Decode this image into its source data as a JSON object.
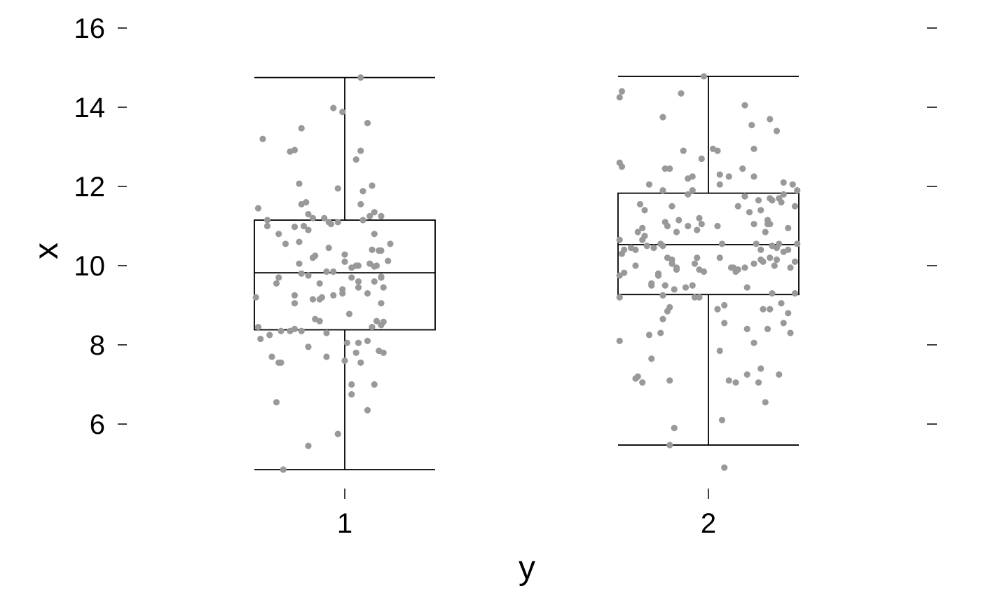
{
  "chart_data": {
    "type": "boxplot",
    "xlabel": "y",
    "ylabel": "x",
    "categories": [
      "1",
      "2"
    ],
    "ylim": [
      4.7,
      16.2
    ],
    "yticks": [
      6,
      8,
      10,
      12,
      14,
      16
    ],
    "grid": false,
    "right_ticks": true,
    "colors": {
      "points": "#999999",
      "box": "#000000"
    },
    "boxes": [
      {
        "category": "1",
        "whisker_low": 4.85,
        "q1": 8.38,
        "median": 9.82,
        "q3": 11.15,
        "whisker_high": 14.75
      },
      {
        "category": "2",
        "whisker_low": 5.47,
        "q1": 9.27,
        "median": 10.53,
        "q3": 11.83,
        "whisker_high": 14.78
      }
    ],
    "points": [
      [
        [
          -0.36,
          13.2
        ],
        [
          -0.38,
          11.45
        ],
        [
          -0.34,
          11.15
        ],
        [
          -0.34,
          11.0
        ],
        [
          -0.29,
          10.8
        ],
        [
          -0.39,
          9.2
        ],
        [
          -0.3,
          9.55
        ],
        [
          -0.29,
          9.7
        ],
        [
          -0.38,
          8.45
        ],
        [
          -0.37,
          8.15
        ],
        [
          -0.33,
          8.25
        ],
        [
          -0.32,
          7.7
        ],
        [
          -0.29,
          7.55
        ],
        [
          -0.28,
          7.55
        ],
        [
          -0.3,
          6.55
        ],
        [
          -0.27,
          4.85
        ],
        [
          -0.24,
          12.88
        ],
        [
          -0.22,
          12.92
        ],
        [
          -0.19,
          13.47
        ],
        [
          -0.2,
          12.07
        ],
        [
          -0.19,
          11.55
        ],
        [
          -0.17,
          11.6
        ],
        [
          -0.16,
          11.3
        ],
        [
          -0.14,
          11.2
        ],
        [
          -0.22,
          10.98
        ],
        [
          -0.18,
          11.0
        ],
        [
          -0.16,
          10.9
        ],
        [
          -0.2,
          10.6
        ],
        [
          -0.13,
          10.25
        ],
        [
          -0.14,
          10.2
        ],
        [
          -0.2,
          10.05
        ],
        [
          -0.19,
          9.8
        ],
        [
          -0.16,
          9.75
        ],
        [
          -0.22,
          9.25
        ],
        [
          -0.22,
          9.05
        ],
        [
          -0.11,
          9.55
        ],
        [
          -0.14,
          9.15
        ],
        [
          -0.1,
          9.2
        ],
        [
          -0.13,
          8.65
        ],
        [
          -0.22,
          8.4
        ],
        [
          -0.24,
          8.35
        ],
        [
          -0.19,
          8.35
        ],
        [
          -0.11,
          8.6
        ],
        [
          -0.16,
          7.95
        ],
        [
          -0.08,
          7.7
        ],
        [
          -0.08,
          8.3
        ],
        [
          -0.16,
          5.45
        ],
        [
          -0.05,
          13.98
        ],
        [
          -0.01,
          13.88
        ],
        [
          -0.03,
          11.95
        ],
        [
          -0.09,
          11.2
        ],
        [
          -0.07,
          11.1
        ],
        [
          -0.03,
          11.1
        ],
        [
          -0.07,
          10.45
        ],
        [
          -0.08,
          9.85
        ],
        [
          0.0,
          10.28
        ],
        [
          0.03,
          9.95
        ],
        [
          0.05,
          10.0
        ],
        [
          -0.01,
          9.4
        ],
        [
          -0.01,
          9.3
        ],
        [
          0.02,
          8.78
        ],
        [
          0.01,
          8.05
        ],
        [
          0.0,
          7.6
        ],
        [
          -0.03,
          5.75
        ],
        [
          0.03,
          7.0
        ],
        [
          0.03,
          6.75
        ],
        [
          0.07,
          14.75
        ],
        [
          0.07,
          12.9
        ],
        [
          0.1,
          13.6
        ],
        [
          0.07,
          11.55
        ],
        [
          0.08,
          11.15
        ],
        [
          0.05,
          12.68
        ],
        [
          0.08,
          11.88
        ],
        [
          0.06,
          9.6
        ],
        [
          0.06,
          9.45
        ],
        [
          0.06,
          8.05
        ],
        [
          0.05,
          7.8
        ],
        [
          0.07,
          7.55
        ],
        [
          0.1,
          6.35
        ],
        [
          0.06,
          10.0
        ],
        [
          0.13,
          9.6
        ],
        [
          0.12,
          12.02
        ],
        [
          0.13,
          11.35
        ],
        [
          0.11,
          11.25
        ],
        [
          0.13,
          10.8
        ],
        [
          0.12,
          10.4
        ],
        [
          0.15,
          10.38
        ],
        [
          0.14,
          10.0
        ],
        [
          0.13,
          9.98
        ],
        [
          0.16,
          9.7
        ],
        [
          0.12,
          8.45
        ],
        [
          0.14,
          8.6
        ],
        [
          0.16,
          8.5
        ],
        [
          0.1,
          8.1
        ],
        [
          0.15,
          7.85
        ],
        [
          0.13,
          7.0
        ],
        [
          0.16,
          11.25
        ],
        [
          0.2,
          10.55
        ],
        [
          0.16,
          10.38
        ],
        [
          0.19,
          10.12
        ],
        [
          0.16,
          9.72
        ],
        [
          0.17,
          9.45
        ],
        [
          0.16,
          9.05
        ],
        [
          0.17,
          8.58
        ],
        [
          0.17,
          7.8
        ],
        [
          -0.11,
          9.15
        ],
        [
          -0.05,
          9.85
        ],
        [
          0.03,
          9.7
        ],
        [
          -0.28,
          8.35
        ],
        [
          0.1,
          9.3
        ],
        [
          0.0,
          10.1
        ],
        [
          -0.06,
          11.05
        ],
        [
          0.11,
          10.05
        ],
        [
          -0.26,
          10.55
        ],
        [
          -0.05,
          9.25
        ]
      ],
      [
        [
          -0.39,
          14.25
        ],
        [
          -0.38,
          14.4
        ],
        [
          -0.39,
          12.6
        ],
        [
          -0.38,
          12.5
        ],
        [
          -0.39,
          10.65
        ],
        [
          -0.37,
          10.4
        ],
        [
          -0.39,
          9.75
        ],
        [
          -0.39,
          9.2
        ],
        [
          -0.39,
          8.1
        ],
        [
          -0.31,
          7.2
        ],
        [
          -0.32,
          7.15
        ],
        [
          -0.37,
          9.82
        ],
        [
          -0.38,
          10.3
        ],
        [
          -0.26,
          12.05
        ],
        [
          -0.28,
          11.4
        ],
        [
          -0.3,
          11.55
        ],
        [
          -0.31,
          10.85
        ],
        [
          -0.29,
          10.95
        ],
        [
          -0.28,
          10.75
        ],
        [
          -0.27,
          10.5
        ],
        [
          -0.34,
          10.45
        ],
        [
          -0.32,
          10.4
        ],
        [
          -0.32,
          10.0
        ],
        [
          -0.29,
          10.65
        ],
        [
          -0.21,
          10.55
        ],
        [
          -0.24,
          10.45
        ],
        [
          -0.25,
          9.5
        ],
        [
          -0.25,
          9.55
        ],
        [
          -0.26,
          8.25
        ],
        [
          -0.25,
          7.65
        ],
        [
          -0.29,
          7.05
        ],
        [
          -0.21,
          8.3
        ],
        [
          -0.2,
          8.65
        ],
        [
          -0.22,
          9.8
        ],
        [
          -0.22,
          9.75
        ],
        [
          -0.2,
          13.75
        ],
        [
          -0.19,
          12.45
        ],
        [
          -0.17,
          12.45
        ],
        [
          -0.2,
          11.9
        ],
        [
          -0.16,
          11.5
        ],
        [
          -0.19,
          11.1
        ],
        [
          -0.18,
          11.0
        ],
        [
          -0.13,
          11.15
        ],
        [
          -0.14,
          10.85
        ],
        [
          -0.2,
          10.5
        ],
        [
          -0.18,
          10.2
        ],
        [
          -0.16,
          10.05
        ],
        [
          -0.16,
          10.15
        ],
        [
          -0.14,
          9.95
        ],
        [
          -0.14,
          9.9
        ],
        [
          -0.15,
          9.4
        ],
        [
          -0.19,
          9.5
        ],
        [
          -0.2,
          9.25
        ],
        [
          -0.18,
          8.85
        ],
        [
          -0.17,
          8.95
        ],
        [
          -0.17,
          7.1
        ],
        [
          -0.15,
          5.9
        ],
        [
          -0.17,
          5.47
        ],
        [
          -0.12,
          14.35
        ],
        [
          -0.11,
          12.9
        ],
        [
          -0.09,
          12.2
        ],
        [
          -0.07,
          12.25
        ],
        [
          -0.09,
          11.8
        ],
        [
          -0.07,
          11.9
        ],
        [
          -0.09,
          11.0
        ],
        [
          -0.05,
          10.9
        ],
        [
          -0.04,
          11.2
        ],
        [
          -0.03,
          11.05
        ],
        [
          -0.03,
          12.7
        ],
        [
          -0.05,
          10.2
        ],
        [
          -0.04,
          9.9
        ],
        [
          -0.06,
          10.05
        ],
        [
          -0.07,
          9.5
        ],
        [
          -0.1,
          9.45
        ],
        [
          -0.06,
          9.2
        ],
        [
          -0.04,
          9.2
        ],
        [
          -0.02,
          9.85
        ],
        [
          -0.02,
          14.78
        ],
        [
          0.02,
          12.95
        ],
        [
          0.04,
          12.9
        ],
        [
          0.05,
          12.3
        ],
        [
          0.05,
          12.05
        ],
        [
          0.09,
          12.25
        ],
        [
          0.04,
          11.0
        ],
        [
          0.06,
          10.55
        ],
        [
          0.05,
          10.2
        ],
        [
          0.1,
          9.95
        ],
        [
          0.11,
          9.95
        ],
        [
          0.12,
          9.85
        ],
        [
          0.07,
          9.0
        ],
        [
          0.04,
          8.9
        ],
        [
          0.07,
          8.55
        ],
        [
          0.05,
          7.85
        ],
        [
          0.09,
          7.1
        ],
        [
          0.12,
          7.05
        ],
        [
          0.06,
          6.1
        ],
        [
          0.07,
          4.9
        ],
        [
          0.16,
          14.05
        ],
        [
          0.19,
          13.55
        ],
        [
          0.2,
          12.95
        ],
        [
          0.15,
          12.45
        ],
        [
          0.2,
          12.25
        ],
        [
          0.16,
          11.75
        ],
        [
          0.13,
          11.5
        ],
        [
          0.18,
          11.35
        ],
        [
          0.22,
          11.65
        ],
        [
          0.23,
          11.4
        ],
        [
          0.2,
          11.05
        ],
        [
          0.21,
          10.55
        ],
        [
          0.23,
          10.15
        ],
        [
          0.24,
          10.1
        ],
        [
          0.2,
          10.05
        ],
        [
          0.16,
          9.95
        ],
        [
          0.13,
          9.9
        ],
        [
          0.17,
          9.45
        ],
        [
          0.17,
          8.4
        ],
        [
          0.2,
          8.05
        ],
        [
          0.23,
          7.4
        ],
        [
          0.22,
          7.05
        ],
        [
          0.17,
          7.25
        ],
        [
          0.27,
          13.7
        ],
        [
          0.27,
          11.7
        ],
        [
          0.28,
          11.65
        ],
        [
          0.31,
          11.7
        ],
        [
          0.33,
          11.8
        ],
        [
          0.32,
          11.6
        ],
        [
          0.26,
          11.15
        ],
        [
          0.27,
          11.05
        ],
        [
          0.25,
          10.85
        ],
        [
          0.28,
          10.5
        ],
        [
          0.3,
          10.45
        ],
        [
          0.31,
          10.55
        ],
        [
          0.33,
          10.35
        ],
        [
          0.35,
          10.4
        ],
        [
          0.35,
          10.95
        ],
        [
          0.27,
          10.2
        ],
        [
          0.29,
          10.0
        ],
        [
          0.3,
          10.15
        ],
        [
          0.28,
          9.3
        ],
        [
          0.32,
          9.05
        ],
        [
          0.27,
          8.9
        ],
        [
          0.35,
          8.8
        ],
        [
          0.33,
          8.55
        ],
        [
          0.24,
          8.9
        ],
        [
          0.26,
          8.4
        ],
        [
          0.36,
          8.3
        ],
        [
          0.37,
          12.05
        ],
        [
          0.39,
          11.9
        ],
        [
          0.38,
          11.5
        ],
        [
          0.39,
          10.55
        ],
        [
          0.38,
          10.1
        ],
        [
          0.36,
          9.95
        ],
        [
          0.38,
          9.3
        ],
        [
          0.31,
          7.25
        ],
        [
          0.25,
          6.55
        ],
        [
          0.3,
          13.4
        ],
        [
          0.33,
          12.1
        ],
        [
          0.23,
          10.4
        ],
        [
          0.26,
          11.05
        ]
      ]
    ]
  }
}
